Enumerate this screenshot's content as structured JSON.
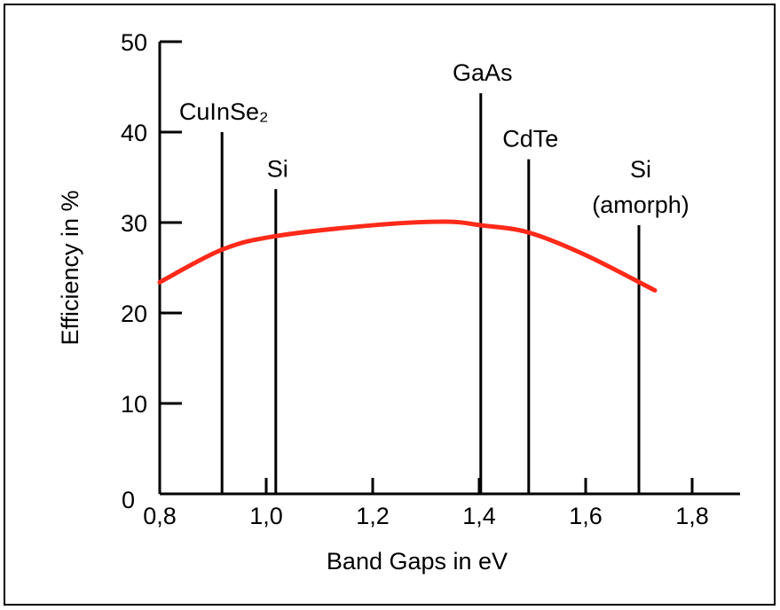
{
  "chart_data": {
    "type": "line",
    "x_label": "Band Gaps in eV",
    "y_label": "Efficiency in %",
    "xlim": [
      0.8,
      1.89
    ],
    "ylim": [
      0,
      50
    ],
    "xticks": [
      {
        "value": 0.8,
        "label": "0,8"
      },
      {
        "value": 1.0,
        "label": "1,0"
      },
      {
        "value": 1.2,
        "label": "1,2"
      },
      {
        "value": 1.4,
        "label": "1,4"
      },
      {
        "value": 1.6,
        "label": "1,6"
      },
      {
        "value": 1.8,
        "label": "1,8"
      }
    ],
    "yticks": [
      0,
      10,
      20,
      30,
      40,
      50
    ],
    "series": [
      {
        "color": "#ff2a1a",
        "x": [
          0.8,
          0.917,
          1.018,
          1.2,
          1.333,
          1.403,
          1.493,
          1.6,
          1.73
        ],
        "values": [
          23.4,
          27,
          28.5,
          29.7,
          30.1,
          29.7,
          28.9,
          26.4,
          22.5
        ]
      }
    ],
    "materials": {
      "color": "#000000",
      "labels": [
        [
          "CuInSe₂"
        ],
        [
          "Si"
        ],
        [
          "GaAs"
        ],
        [
          "CdTe"
        ],
        [
          "Si",
          "(amorph)"
        ]
      ],
      "x": [
        0.917,
        1.018,
        1.403,
        1.493,
        1.7
      ],
      "values": [
        40,
        33.7,
        44.3,
        37,
        29.7
      ]
    }
  }
}
